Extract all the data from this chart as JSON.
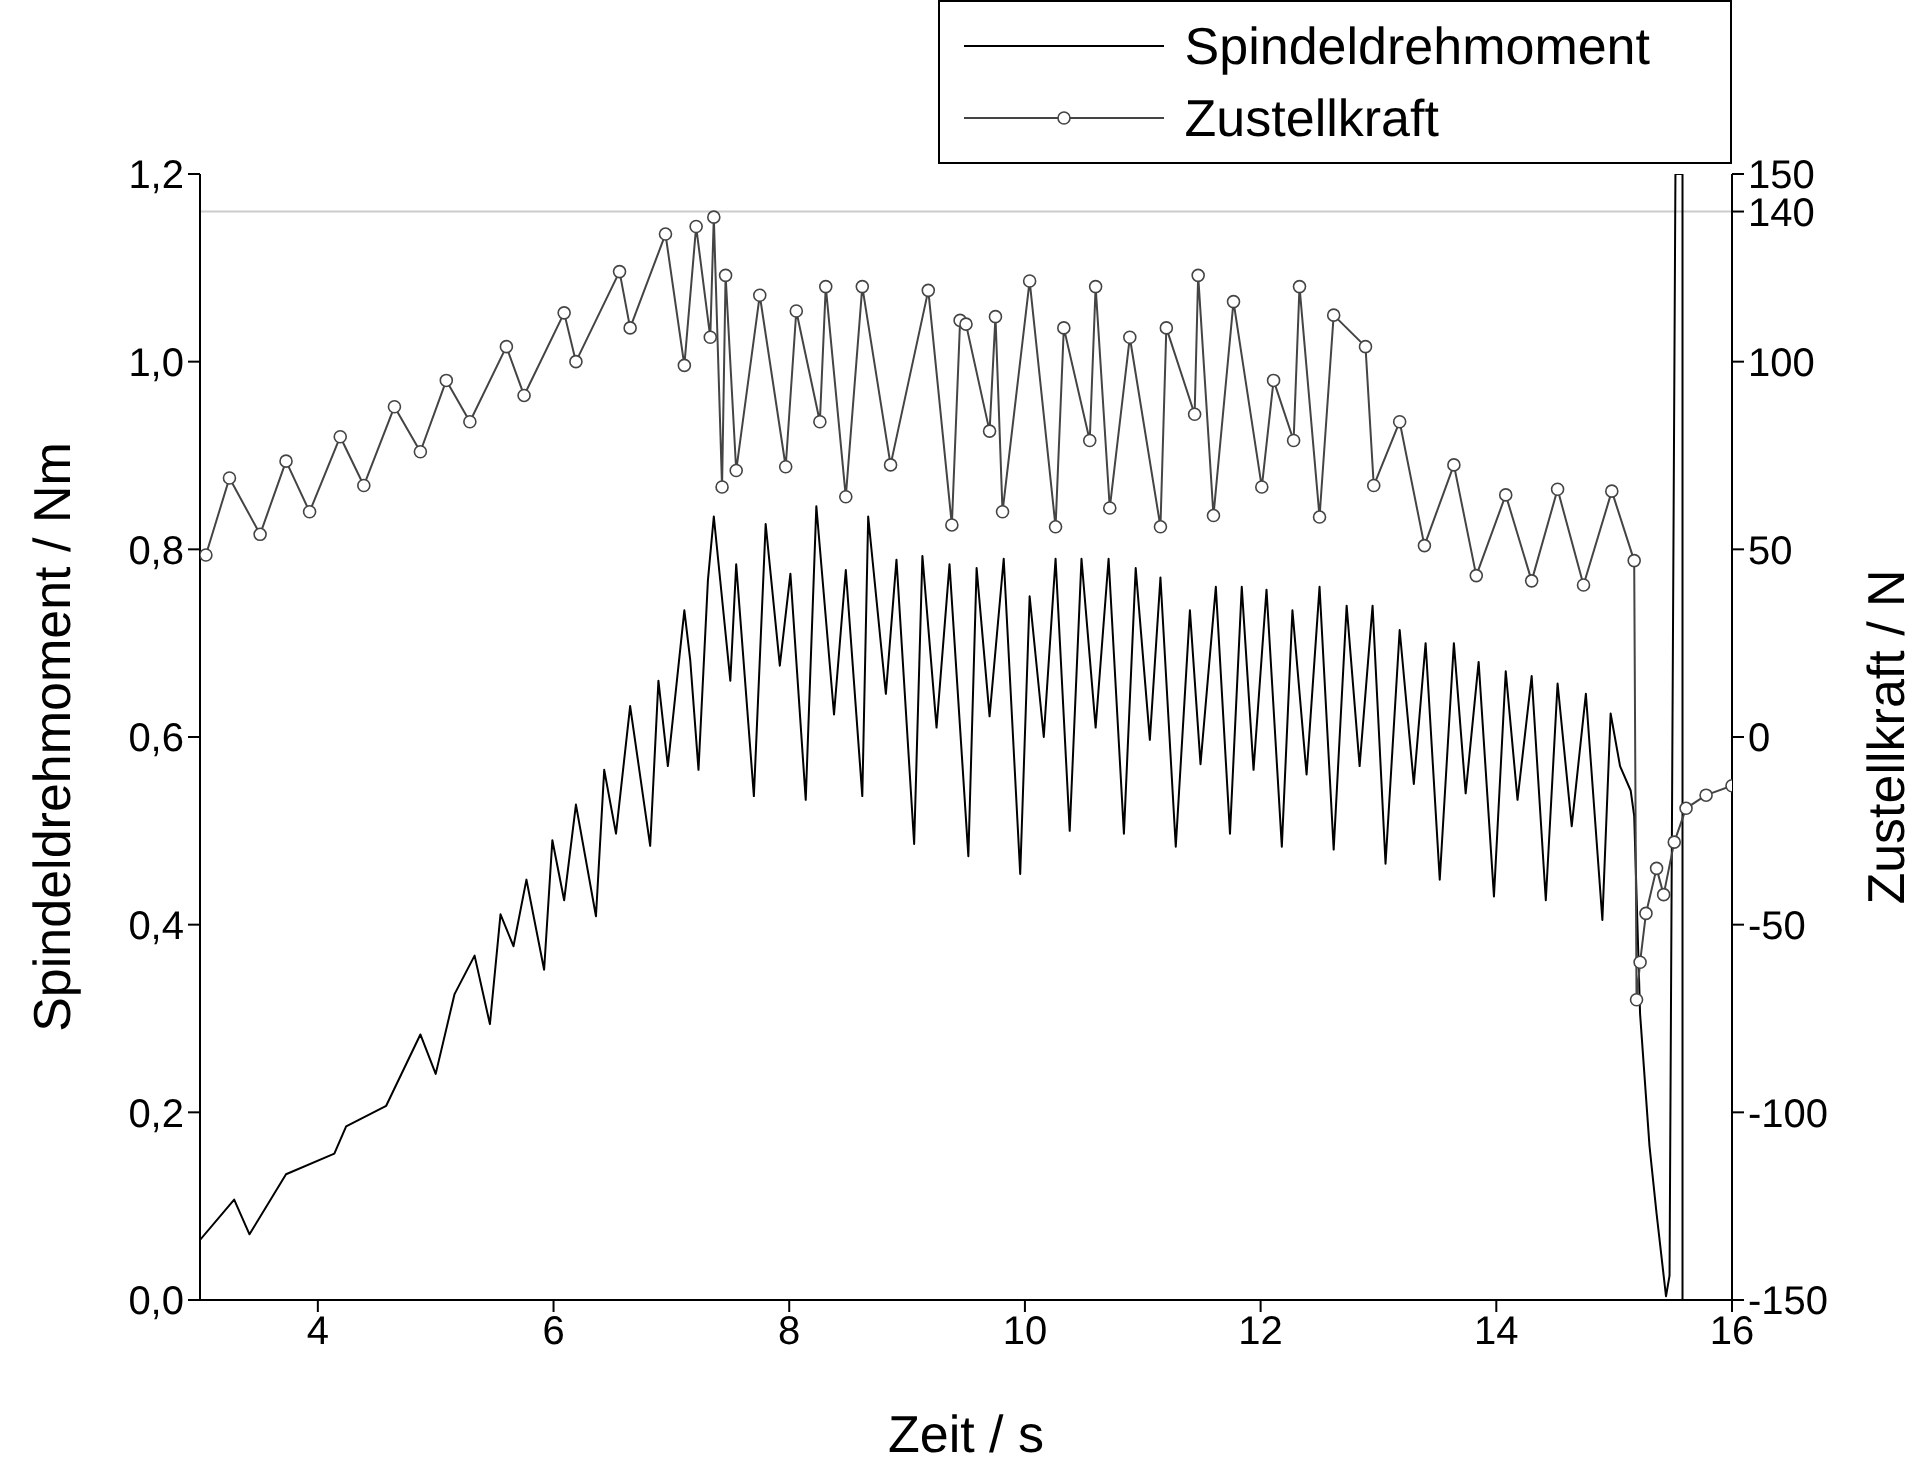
{
  "chart_data": {
    "type": "line",
    "xlabel": "Zeit / s",
    "ylabel": "Spindeldrehmoment / Nm",
    "y2label": "Zustellkraft / N",
    "xlim": [
      3,
      16
    ],
    "xticks": [
      4,
      6,
      8,
      10,
      12,
      14,
      16
    ],
    "ylim": [
      0,
      1.2
    ],
    "yticks": [
      {
        "value": 0,
        "label": "0,0"
      },
      {
        "value": 0.2,
        "label": "0,2"
      },
      {
        "value": 0.4,
        "label": "0,4"
      },
      {
        "value": 0.6,
        "label": "0,6"
      },
      {
        "value": 0.8,
        "label": "0,8"
      },
      {
        "value": 1,
        "label": "1,0"
      },
      {
        "value": 1.2,
        "label": "1,2"
      }
    ],
    "y2lim": [
      -150,
      150
    ],
    "y2ticks": [
      -150,
      -100,
      -50,
      0,
      50,
      100,
      140,
      150
    ],
    "legend": "top right",
    "ref_lines": [
      {
        "axis": "y2",
        "value": 140,
        "color": "#cccccc"
      }
    ],
    "series": [
      {
        "name": "Spindeldrehmoment",
        "color": "#000000",
        "marker": "none",
        "x": [
          3.0,
          3.29,
          3.42,
          3.73,
          4.14,
          4.24,
          4.58,
          4.87,
          5.0,
          5.16,
          5.33,
          5.46,
          5.55,
          5.66,
          5.77,
          5.92,
          5.99,
          6.09,
          6.19,
          6.36,
          6.43,
          6.53,
          6.65,
          6.82,
          6.89,
          6.97,
          7.11,
          7.16,
          7.23,
          7.31,
          7.36,
          7.5,
          7.55,
          7.7,
          7.8,
          7.92,
          8.01,
          8.14,
          8.23,
          8.38,
          8.48,
          8.62,
          8.67,
          8.82,
          8.91,
          9.06,
          9.13,
          9.25,
          9.36,
          9.52,
          9.59,
          9.7,
          9.82,
          9.96,
          10.04,
          10.16,
          10.26,
          10.38,
          10.48,
          10.6,
          10.71,
          10.84,
          10.94,
          11.06,
          11.15,
          11.28,
          11.4,
          11.49,
          11.62,
          11.74,
          11.84,
          11.94,
          12.05,
          12.18,
          12.27,
          12.39,
          12.5,
          12.62,
          12.73,
          12.84,
          12.95,
          13.06,
          13.18,
          13.3,
          13.4,
          13.52,
          13.64,
          13.74,
          13.85,
          13.98,
          14.08,
          14.18,
          14.3,
          14.42,
          14.52,
          14.64,
          14.76,
          14.9,
          14.97,
          15.05,
          15.14,
          15.17,
          15.22,
          15.3,
          15.36,
          15.44,
          15.47,
          15.52,
          15.58,
          15.58
        ],
        "values": [
          0.064,
          0.107,
          0.07,
          0.134,
          0.156,
          0.185,
          0.207,
          0.283,
          0.241,
          0.326,
          0.367,
          0.294,
          0.411,
          0.377,
          0.448,
          0.352,
          0.49,
          0.426,
          0.528,
          0.409,
          0.565,
          0.497,
          0.633,
          0.484,
          0.66,
          0.569,
          0.735,
          0.682,
          0.565,
          0.767,
          0.835,
          0.66,
          0.784,
          0.537,
          0.827,
          0.676,
          0.774,
          0.533,
          0.846,
          0.624,
          0.778,
          0.537,
          0.835,
          0.646,
          0.789,
          0.486,
          0.793,
          0.61,
          0.784,
          0.473,
          0.78,
          0.622,
          0.79,
          0.454,
          0.75,
          0.6,
          0.79,
          0.5,
          0.79,
          0.61,
          0.79,
          0.497,
          0.78,
          0.597,
          0.77,
          0.483,
          0.735,
          0.571,
          0.76,
          0.497,
          0.76,
          0.565,
          0.757,
          0.483,
          0.735,
          0.56,
          0.76,
          0.48,
          0.74,
          0.569,
          0.74,
          0.465,
          0.714,
          0.55,
          0.7,
          0.448,
          0.7,
          0.54,
          0.68,
          0.43,
          0.67,
          0.533,
          0.665,
          0.426,
          0.657,
          0.505,
          0.646,
          0.405,
          0.625,
          0.569,
          0.543,
          0.516,
          0.305,
          0.164,
          0.092,
          0.004,
          0.026,
          1.2,
          1.2,
          0.0
        ]
      },
      {
        "name": "Zustellkraft",
        "color": "#444444",
        "marker": "circle",
        "axis": "y2",
        "x": [
          3.05,
          3.25,
          3.51,
          3.73,
          3.93,
          4.19,
          4.39,
          4.65,
          4.87,
          5.09,
          5.29,
          5.6,
          5.75,
          6.09,
          6.19,
          6.56,
          6.65,
          6.95,
          7.11,
          7.21,
          7.33,
          7.36,
          7.43,
          7.46,
          7.55,
          7.75,
          7.97,
          8.06,
          8.26,
          8.31,
          8.48,
          8.62,
          8.86,
          9.18,
          9.38,
          9.45,
          9.5,
          9.7,
          9.75,
          9.81,
          10.04,
          10.26,
          10.33,
          10.55,
          10.6,
          10.72,
          10.89,
          11.15,
          11.2,
          11.44,
          11.47,
          11.6,
          11.77,
          12.01,
          12.11,
          12.28,
          12.33,
          12.5,
          12.62,
          12.89,
          12.96,
          13.18,
          13.39,
          13.64,
          13.83,
          14.08,
          14.3,
          14.52,
          14.74,
          14.98,
          15.17,
          15.19,
          15.22,
          15.27,
          15.36,
          15.42,
          15.51,
          15.61,
          15.78,
          16.0
        ],
        "values": [
          48.5,
          69,
          54,
          73.5,
          60,
          80,
          67,
          88,
          76,
          95,
          84,
          104,
          91,
          113,
          100,
          124,
          109,
          134,
          99,
          136,
          106.5,
          138.5,
          66.6,
          123,
          71,
          117.7,
          72,
          113.5,
          84,
          120,
          64,
          120,
          72.5,
          119,
          56.5,
          111,
          110,
          81.5,
          112,
          60,
          121.5,
          56,
          109,
          79,
          120,
          61,
          106.5,
          56,
          109,
          86,
          123,
          59,
          116,
          66.6,
          95,
          79,
          120,
          58.6,
          112.4,
          104,
          67,
          84,
          51,
          72.5,
          43,
          64.5,
          41.6,
          66,
          40.5,
          65.5,
          47,
          -70,
          -60,
          -47,
          -35,
          -42,
          -28,
          -19,
          -15.5,
          -13
        ]
      }
    ]
  }
}
